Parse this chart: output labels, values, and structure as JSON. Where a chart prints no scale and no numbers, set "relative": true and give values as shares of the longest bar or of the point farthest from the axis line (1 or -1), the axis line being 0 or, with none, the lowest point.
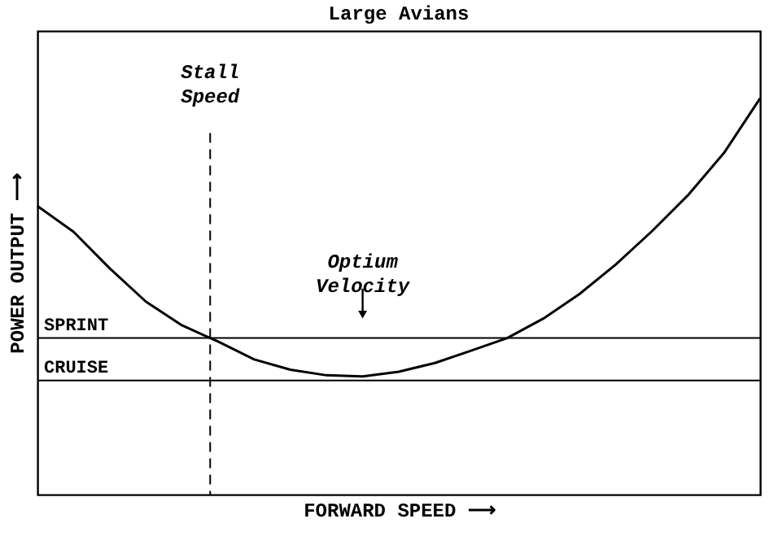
{
  "chart_data": {
    "type": "line",
    "title": "Large Avians",
    "xlabel": "FORWARD SPEED ⟶",
    "ylabel": "POWER OUTPUT ⟶",
    "relative": true,
    "tick_labels": false,
    "grid": false,
    "marker": "none",
    "line_style": "solid",
    "categories": [
      null,
      null,
      null,
      null,
      null,
      null,
      null,
      null,
      null,
      null,
      null,
      null,
      null,
      null,
      null,
      null,
      null,
      null,
      null,
      null,
      null
    ],
    "series": [
      {
        "color": "#000000",
        "values": [
          0.728,
          0.663,
          0.571,
          0.487,
          0.427,
          0.386,
          0.341,
          0.315,
          0.301,
          0.298,
          0.31,
          0.332,
          0.363,
          0.395,
          0.444,
          0.506,
          0.58,
          0.664,
          0.755,
          0.862,
          1
        ]
      }
    ],
    "ref_lines": [
      {
        "axis": "y",
        "value": 0.395,
        "label": "SPRINT",
        "color": "#000000",
        "line_style": "solid"
      },
      {
        "axis": "y",
        "value": 0.288,
        "label": "CRUISE",
        "color": "#000000",
        "line_style": "solid"
      }
    ],
    "annotations": [
      "Stall Speed",
      "Optium Velocity"
    ]
  }
}
